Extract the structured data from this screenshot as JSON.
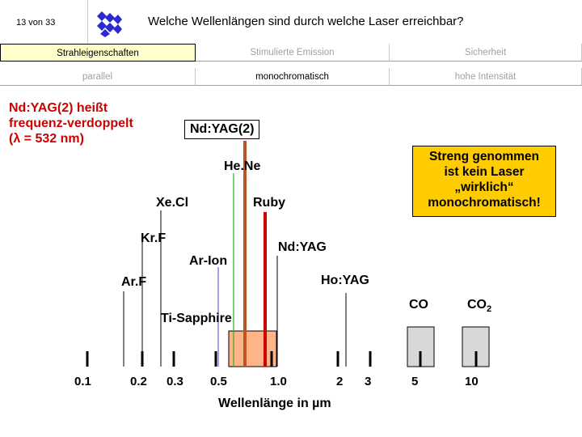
{
  "header": {
    "page_counter": "13 von 33",
    "title": "Welche Wellenlängen sind durch welche Laser erreichbar?"
  },
  "tabs_row1": [
    {
      "label": "Strahleigenschaften",
      "active": true
    },
    {
      "label": "Stimulierte Emission",
      "active": false
    },
    {
      "label": "Sicherheit",
      "active": false
    }
  ],
  "tabs_row2": [
    {
      "label": "parallel"
    },
    {
      "label": "monochromatisch"
    },
    {
      "label": "hohe Intensität"
    }
  ],
  "annotations": {
    "ndyag2_line1": "Nd:YAG(2) heißt",
    "ndyag2_line2": "frequenz-verdoppelt",
    "ndyag2_line3_prefix": "(",
    "ndyag2_line3_lambda": "λ",
    "ndyag2_line3_suffix": " = 532 nm)",
    "ndyag2_box": "Nd:YAG(2)",
    "note_lines": [
      "Streng genommen",
      "ist kein Laser",
      "„wirklich“",
      "monochromatisch!"
    ]
  },
  "lasers": {
    "hene": "He.Ne",
    "xecl": "Xe.Cl",
    "ruby": "Ruby",
    "krf": "Kr.F",
    "ndyag": "Nd:YAG",
    "arion": "Ar-Ion",
    "arf": "Ar.F",
    "hoyag": "Ho:YAG",
    "co": "CO",
    "co2_base": "CO",
    "co2_sub": "2",
    "tisapphire": "Ti-Sapphire"
  },
  "axis": {
    "ticks": [
      "0.1",
      "0.2",
      "0.3",
      "0.5",
      "1.0",
      "2",
      "3",
      "5",
      "10"
    ],
    "xlabel_prefix": "Wellenlänge in ",
    "xlabel_mu": "µ",
    "xlabel_suffix": "m"
  },
  "colors": {
    "active_tab": "#ffffcc",
    "note_bg": "#ffcc00",
    "ruby_line": "#cc0000",
    "ndyag2_line": "#bb5522",
    "hene_line": "#33aa33",
    "arion_line": "#6666cc",
    "tisapphire_fill": "#ffb488",
    "co_fill": "#d8d8d8"
  }
}
